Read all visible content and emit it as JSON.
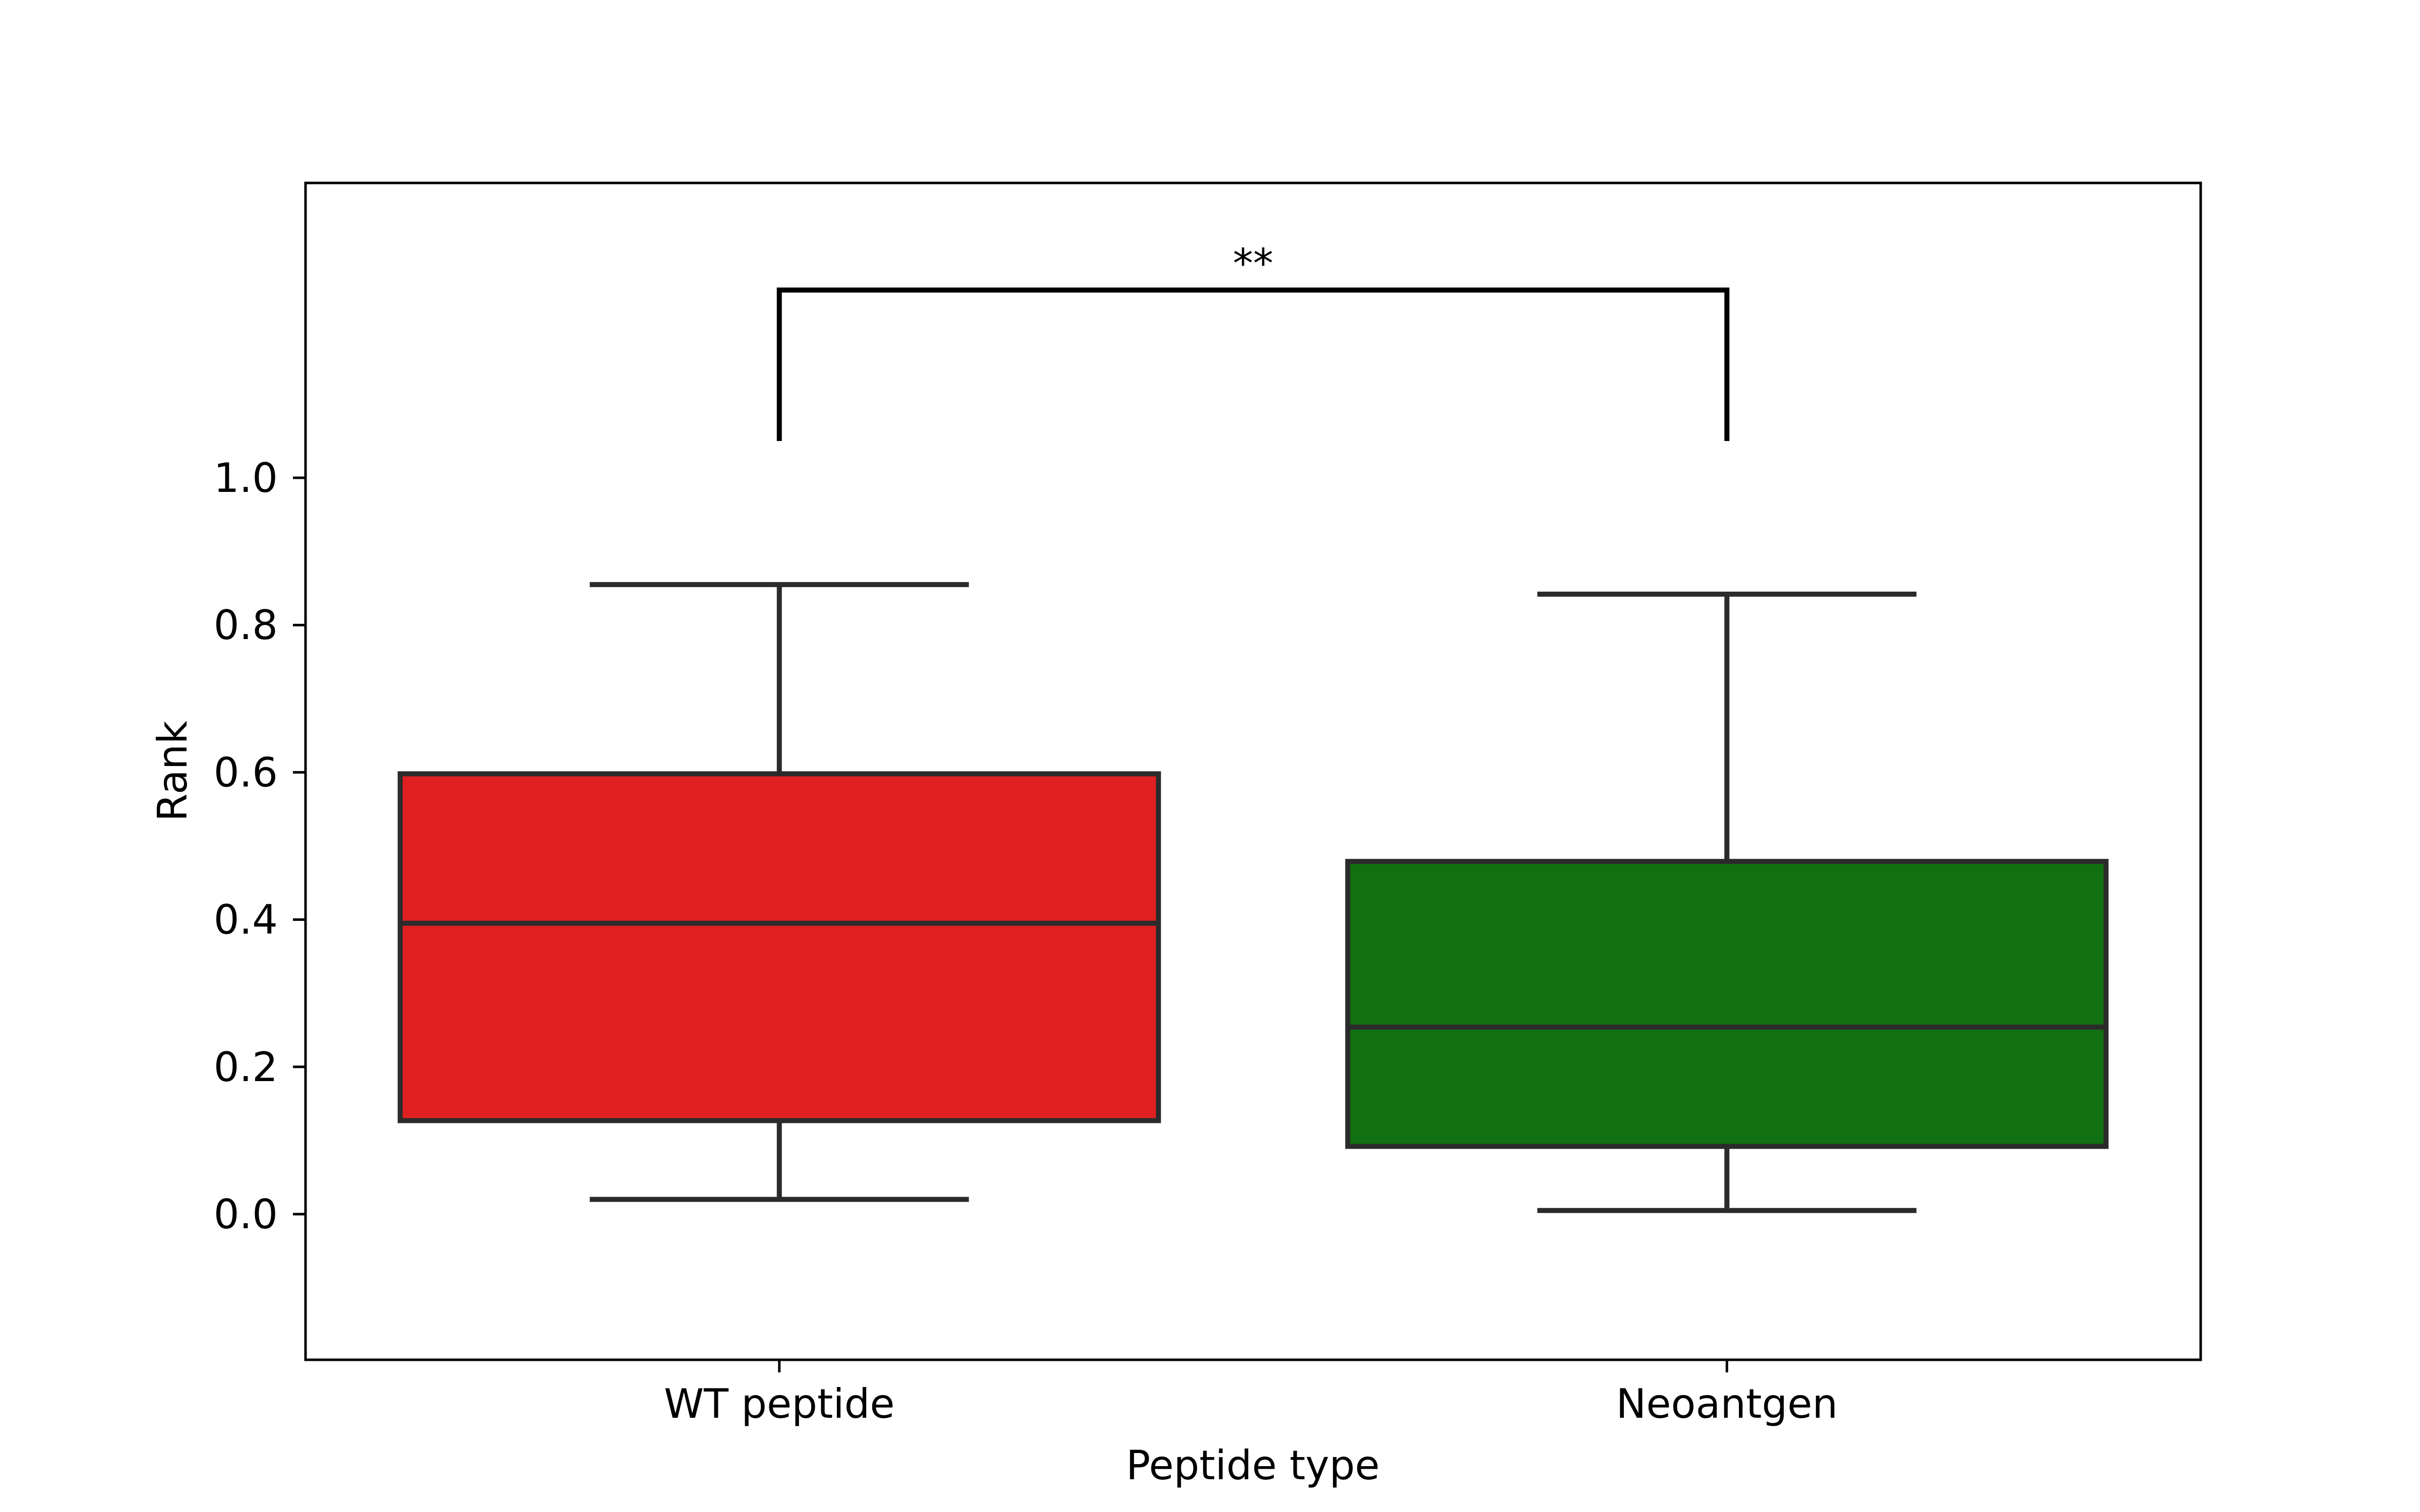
{
  "chart_data": {
    "type": "box",
    "xlabel": "Peptide type",
    "ylabel": "Rank",
    "categories": [
      "WT peptide",
      "Neoantgen"
    ],
    "boxes": [
      {
        "category": "WT peptide",
        "whisker_low": 0.02,
        "q1": 0.127,
        "median": 0.395,
        "q3": 0.598,
        "whisker_high": 0.855,
        "color": "#e02020"
      },
      {
        "category": "Neoantgen",
        "whisker_low": 0.005,
        "q1": 0.092,
        "median": 0.254,
        "q3": 0.479,
        "whisker_high": 0.842,
        "color": "#117011"
      }
    ],
    "ylim": [
      -0.2,
      1.4
    ],
    "yticks": [
      0.0,
      0.2,
      0.4,
      0.6,
      0.8,
      1.0
    ],
    "ytick_labels": [
      "0.0",
      "0.2",
      "0.4",
      "0.6",
      "0.8",
      "1.0"
    ],
    "significance": {
      "label": "**",
      "from": "WT peptide",
      "to": "Neoantgen",
      "bar_y": 1.255,
      "leg_y": 1.05
    },
    "grid": false,
    "legend": false
  }
}
